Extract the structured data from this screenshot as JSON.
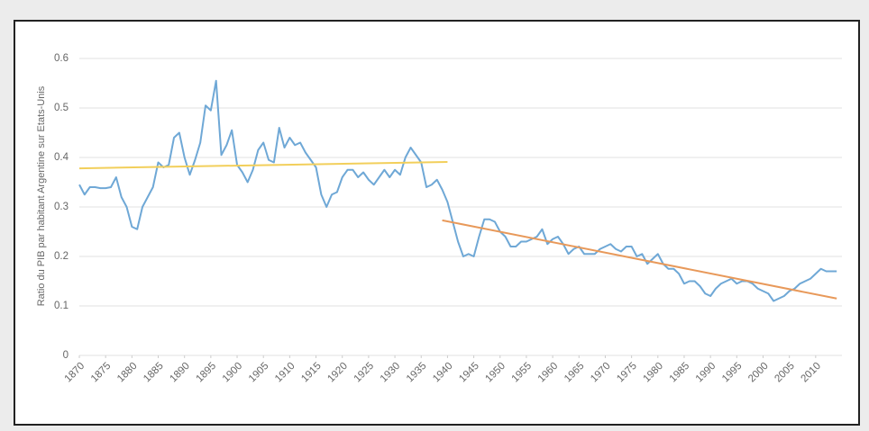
{
  "chart_data": {
    "type": "line",
    "y_label": "Ratio du PIB par habitant Argentine sur Etats-Unis",
    "xlim": [
      1870,
      2015
    ],
    "ylim": [
      0,
      0.6
    ],
    "yticks": [
      0,
      0.1,
      0.2,
      0.3,
      0.4,
      0.5,
      0.6
    ],
    "xticks": [
      1870,
      1875,
      1880,
      1885,
      1890,
      1895,
      1900,
      1905,
      1910,
      1915,
      1920,
      1925,
      1930,
      1935,
      1940,
      1945,
      1950,
      1955,
      1960,
      1965,
      1970,
      1975,
      1980,
      1985,
      1990,
      1995,
      2000,
      2005,
      2010
    ],
    "grid": true,
    "series": [
      {
        "color": "#6fa8d6",
        "x": [
          1870,
          1871,
          1872,
          1873,
          1874,
          1875,
          1876,
          1877,
          1878,
          1879,
          1880,
          1881,
          1882,
          1883,
          1884,
          1885,
          1886,
          1887,
          1888,
          1889,
          1890,
          1891,
          1892,
          1893,
          1894,
          1895,
          1896,
          1897,
          1898,
          1899,
          1900,
          1901,
          1902,
          1903,
          1904,
          1905,
          1906,
          1907,
          1908,
          1909,
          1910,
          1911,
          1912,
          1913,
          1914,
          1915,
          1916,
          1917,
          1918,
          1919,
          1920,
          1921,
          1922,
          1923,
          1924,
          1925,
          1926,
          1927,
          1928,
          1929,
          1930,
          1931,
          1932,
          1933,
          1934,
          1935,
          1936,
          1937,
          1938,
          1939,
          1940,
          1941,
          1942,
          1943,
          1944,
          1945,
          1946,
          1947,
          1948,
          1949,
          1950,
          1951,
          1952,
          1953,
          1954,
          1955,
          1956,
          1957,
          1958,
          1959,
          1960,
          1961,
          1962,
          1963,
          1964,
          1965,
          1966,
          1967,
          1968,
          1969,
          1970,
          1971,
          1972,
          1973,
          1974,
          1975,
          1976,
          1977,
          1978,
          1979,
          1980,
          1981,
          1982,
          1983,
          1984,
          1985,
          1986,
          1987,
          1988,
          1989,
          1990,
          1991,
          1992,
          1993,
          1994,
          1995,
          1996,
          1997,
          1998,
          1999,
          2000,
          2001,
          2002,
          2003,
          2004,
          2005,
          2006,
          2007,
          2008,
          2009,
          2010,
          2011,
          2012,
          2013,
          2014
        ],
        "values": [
          0.345,
          0.325,
          0.34,
          0.34,
          0.338,
          0.338,
          0.34,
          0.36,
          0.32,
          0.3,
          0.26,
          0.255,
          0.3,
          0.32,
          0.34,
          0.39,
          0.38,
          0.385,
          0.44,
          0.45,
          0.4,
          0.365,
          0.395,
          0.43,
          0.505,
          0.495,
          0.555,
          0.405,
          0.425,
          0.455,
          0.385,
          0.37,
          0.35,
          0.375,
          0.415,
          0.43,
          0.395,
          0.39,
          0.46,
          0.42,
          0.44,
          0.425,
          0.43,
          0.41,
          0.395,
          0.38,
          0.325,
          0.3,
          0.325,
          0.33,
          0.36,
          0.375,
          0.375,
          0.36,
          0.37,
          0.355,
          0.345,
          0.36,
          0.375,
          0.36,
          0.375,
          0.365,
          0.4,
          0.42,
          0.405,
          0.39,
          0.34,
          0.345,
          0.355,
          0.335,
          0.31,
          0.27,
          0.23,
          0.2,
          0.205,
          0.2,
          0.24,
          0.275,
          0.275,
          0.27,
          0.25,
          0.24,
          0.22,
          0.22,
          0.23,
          0.23,
          0.235,
          0.24,
          0.255,
          0.225,
          0.235,
          0.24,
          0.225,
          0.205,
          0.215,
          0.22,
          0.205,
          0.205,
          0.205,
          0.215,
          0.22,
          0.225,
          0.215,
          0.21,
          0.22,
          0.22,
          0.2,
          0.205,
          0.185,
          0.195,
          0.205,
          0.185,
          0.175,
          0.175,
          0.165,
          0.145,
          0.15,
          0.15,
          0.14,
          0.125,
          0.12,
          0.135,
          0.145,
          0.15,
          0.155,
          0.145,
          0.15,
          0.15,
          0.145,
          0.135,
          0.13,
          0.125,
          0.11,
          0.115,
          0.12,
          0.13,
          0.135,
          0.145,
          0.15,
          0.155,
          0.165,
          0.175,
          0.17,
          0.17,
          0.17
        ]
      },
      {
        "color": "#f2cf5b",
        "x": [
          1870,
          1940
        ],
        "values": [
          0.378,
          0.391
        ]
      },
      {
        "color": "#e8995a",
        "x": [
          1939,
          2014
        ],
        "values": [
          0.273,
          0.115
        ]
      }
    ]
  }
}
